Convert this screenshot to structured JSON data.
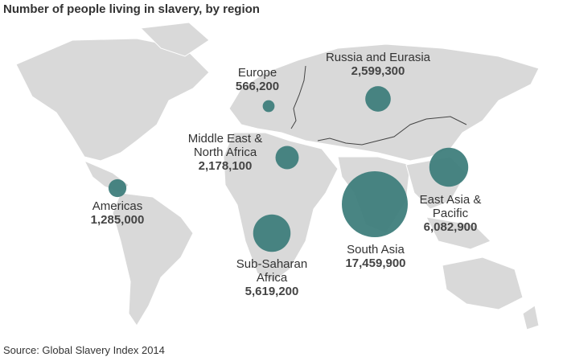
{
  "chart_data": {
    "type": "bubble_map",
    "title": "Number of people living in slavery, by region",
    "source": "Source: Global Slavery Index 2014",
    "color": "#3f7e7c",
    "categories": [
      "Europe",
      "Russia and Eurasia",
      "Middle East & North Africa",
      "Americas",
      "Sub-Saharan Africa",
      "South Asia",
      "East Asia & Pacific"
    ],
    "values": [
      566200,
      2599300,
      2178100,
      1285000,
      5619200,
      17459900,
      6082900
    ],
    "value_labels": [
      "566,200",
      "2,599,300",
      "2,178,100",
      "1,285,000",
      "5,619,200",
      "17,459,900",
      "6,082,900"
    ]
  }
}
